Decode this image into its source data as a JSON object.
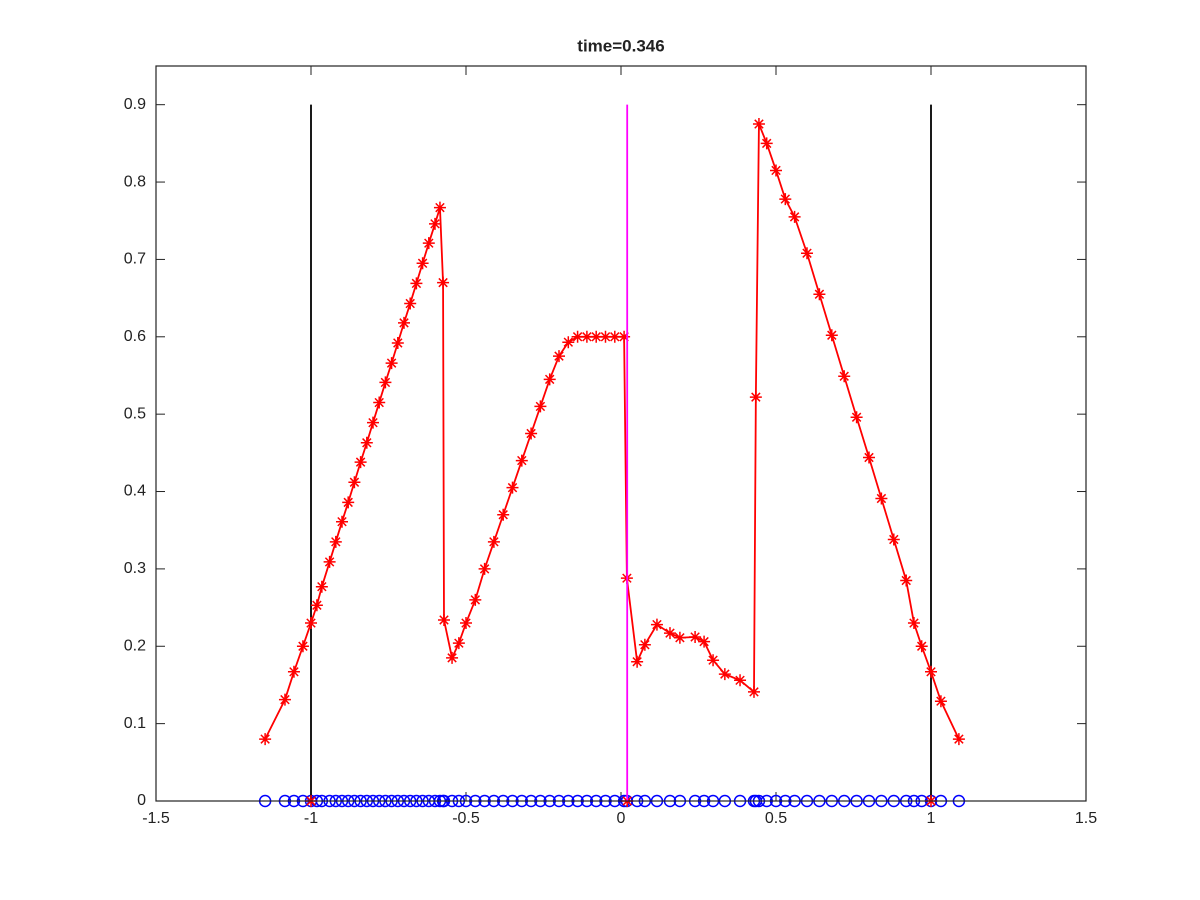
{
  "chart_data": {
    "type": "line",
    "title": "time=0.346",
    "xlim": [
      -1.5,
      1.5
    ],
    "ylim": [
      0,
      0.95
    ],
    "xticks": [
      -1.5,
      -1,
      -0.5,
      0,
      0.5,
      1,
      1.5
    ],
    "yticks": [
      0,
      0.1,
      0.2,
      0.3,
      0.4,
      0.5,
      0.6,
      0.7,
      0.8,
      0.9
    ],
    "box": true,
    "series": [
      {
        "color": "#0000ff",
        "marker": "o",
        "linestyle": "none",
        "x": [
          -1.148,
          -1.084,
          -1.055,
          -1.026,
          -1.0,
          -0.981,
          -0.965,
          -0.94,
          -0.92,
          -0.9,
          -0.88,
          -0.86,
          -0.84,
          -0.82,
          -0.8,
          -0.78,
          -0.76,
          -0.74,
          -0.72,
          -0.7,
          -0.68,
          -0.66,
          -0.64,
          -0.62,
          -0.6,
          -0.584,
          -0.574,
          -0.571,
          -0.545,
          -0.523,
          -0.5,
          -0.47,
          -0.44,
          -0.41,
          -0.38,
          -0.35,
          -0.32,
          -0.29,
          -0.26,
          -0.23,
          -0.2,
          -0.17,
          -0.14,
          -0.11,
          -0.08,
          -0.05,
          -0.02,
          0.01,
          0.019,
          0.052,
          0.077,
          0.116,
          0.158,
          0.19,
          0.239,
          0.268,
          0.297,
          0.335,
          0.384,
          0.429,
          0.435,
          0.445,
          0.47,
          0.5,
          0.53,
          0.56,
          0.6,
          0.64,
          0.68,
          0.72,
          0.76,
          0.8,
          0.84,
          0.88,
          0.92,
          0.945,
          0.97,
          1.0,
          1.032,
          1.09
        ],
        "values": [
          0,
          0,
          0,
          0,
          0,
          0,
          0,
          0,
          0,
          0,
          0,
          0,
          0,
          0,
          0,
          0,
          0,
          0,
          0,
          0,
          0,
          0,
          0,
          0,
          0,
          0,
          0,
          0,
          0,
          0,
          0,
          0,
          0,
          0,
          0,
          0,
          0,
          0,
          0,
          0,
          0,
          0,
          0,
          0,
          0,
          0,
          0,
          0,
          0,
          0,
          0,
          0,
          0,
          0,
          0,
          0,
          0,
          0,
          0,
          0,
          0,
          0,
          0,
          0,
          0,
          0,
          0,
          0,
          0,
          0,
          0,
          0,
          0,
          0,
          0,
          0,
          0,
          0,
          0,
          0
        ]
      },
      {
        "color": "#000000",
        "marker": "none",
        "linestyle": "-",
        "x": [
          -1,
          -1
        ],
        "values": [
          0,
          0.9
        ]
      },
      {
        "color": "#000000",
        "marker": "none",
        "linestyle": "-",
        "x": [
          1,
          1
        ],
        "values": [
          0,
          0.9
        ]
      },
      {
        "color": "#ff0000",
        "marker": "*",
        "linestyle": "-",
        "x": [
          -1.148,
          -1.084,
          -1.055,
          -1.026,
          -1.0,
          -0.981,
          -0.965,
          -0.94,
          -0.92,
          -0.9,
          -0.88,
          -0.86,
          -0.84,
          -0.82,
          -0.8,
          -0.78,
          -0.76,
          -0.74,
          -0.72,
          -0.7,
          -0.68,
          -0.66,
          -0.64,
          -0.62,
          -0.6,
          -0.584,
          -0.574,
          -0.571,
          -0.545,
          -0.523,
          -0.5,
          -0.47,
          -0.44,
          -0.41,
          -0.38,
          -0.35,
          -0.32,
          -0.29,
          -0.26,
          -0.23,
          -0.2,
          -0.17,
          -0.14,
          -0.11,
          -0.08,
          -0.05,
          -0.02,
          0.01,
          0.019,
          0.052,
          0.077,
          0.116,
          0.158,
          0.19,
          0.239,
          0.268,
          0.297,
          0.335,
          0.384,
          0.429,
          0.435,
          0.445,
          0.47,
          0.5,
          0.53,
          0.56,
          0.6,
          0.64,
          0.68,
          0.72,
          0.76,
          0.8,
          0.84,
          0.88,
          0.92,
          0.945,
          0.97,
          1.0,
          1.032,
          1.09
        ],
        "values": [
          0.08,
          0.131,
          0.167,
          0.2,
          0.23,
          0.253,
          0.277,
          0.309,
          0.335,
          0.361,
          0.386,
          0.412,
          0.438,
          0.463,
          0.489,
          0.515,
          0.541,
          0.566,
          0.592,
          0.618,
          0.643,
          0.669,
          0.695,
          0.721,
          0.746,
          0.767,
          0.67,
          0.234,
          0.185,
          0.204,
          0.23,
          0.26,
          0.3,
          0.335,
          0.37,
          0.405,
          0.44,
          0.475,
          0.51,
          0.545,
          0.575,
          0.593,
          0.6,
          0.6,
          0.6,
          0.6,
          0.6,
          0.6,
          0.288,
          0.18,
          0.202,
          0.228,
          0.217,
          0.211,
          0.212,
          0.206,
          0.182,
          0.164,
          0.156,
          0.141,
          0.522,
          0.875,
          0.85,
          0.815,
          0.778,
          0.755,
          0.708,
          0.655,
          0.602,
          0.549,
          0.496,
          0.444,
          0.391,
          0.338,
          0.285,
          0.23,
          0.2,
          0.167,
          0.129,
          0.08
        ]
      },
      {
        "color": "#ff0000",
        "marker": "*",
        "linestyle": "none",
        "x": [
          -1,
          0.02,
          1
        ],
        "values": [
          0,
          0,
          0
        ]
      },
      {
        "color": "#ff00ff",
        "marker": "none",
        "linestyle": "-",
        "x": [
          0.02,
          0.02
        ],
        "values": [
          0,
          0.9
        ]
      }
    ]
  }
}
